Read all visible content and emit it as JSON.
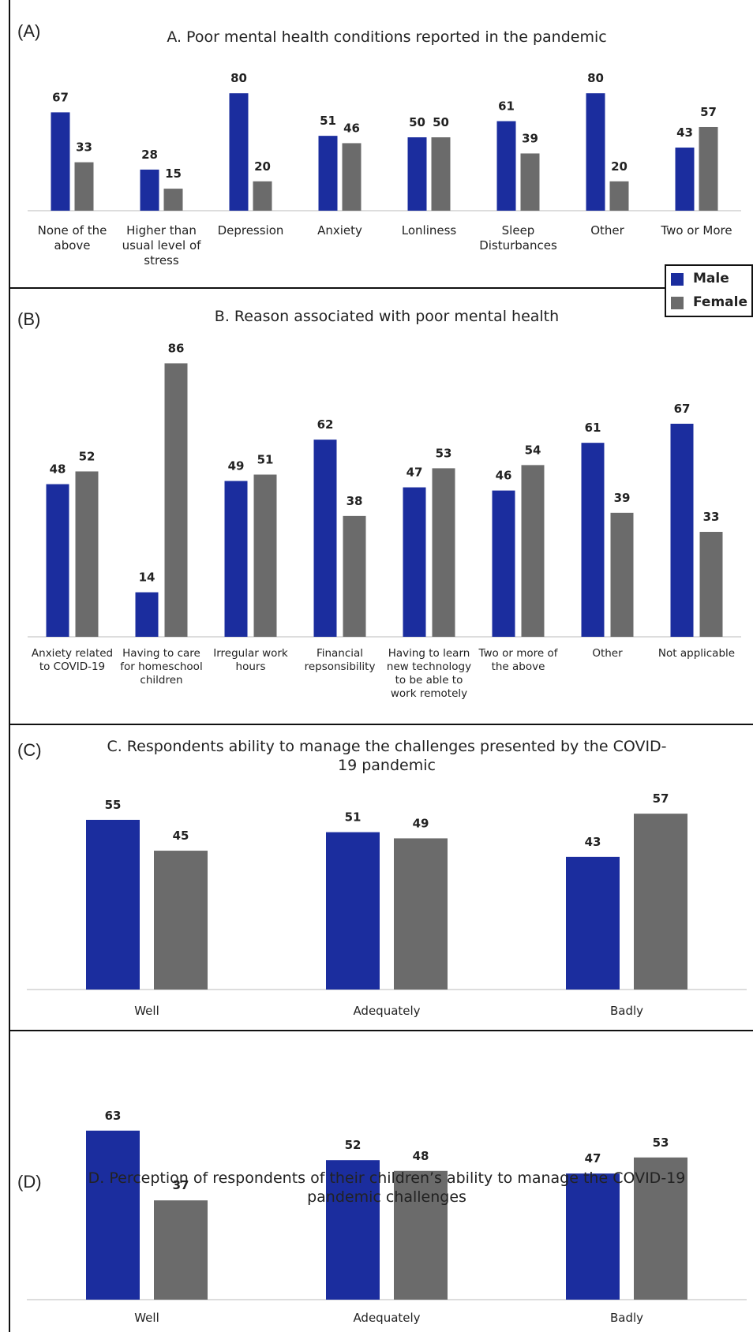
{
  "chart_data": [
    {
      "type": "bar",
      "panel": "(A)",
      "title": "A. Poor mental health conditions reported in the pandemic",
      "categories": [
        "None of the above",
        "Higher than usual level of stress",
        "Depression",
        "Anxiety",
        "Lonliness",
        "Sleep Disturbances",
        "Other",
        "Two or More"
      ],
      "series": [
        {
          "name": "Male",
          "color": "#1b2d9e",
          "values": [
            67,
            28,
            80,
            51,
            50,
            61,
            80,
            43
          ]
        },
        {
          "name": "Female",
          "color": "#6b6b6b",
          "values": [
            33,
            15,
            20,
            46,
            50,
            39,
            20,
            57
          ]
        }
      ],
      "legend": "top-right"
    },
    {
      "type": "bar",
      "panel": "(B)",
      "title": "B. Reason associated with poor mental health",
      "categories": [
        "Anxiety related to COVID-19",
        "Having to care for homeschool children",
        "Irregular work hours",
        "Financial repsonsibility",
        "Having to learn new technology to be able to work remotely",
        "Two or more of the above",
        "Other",
        "Not applicable"
      ],
      "series": [
        {
          "name": "Male",
          "color": "#1b2d9e",
          "values": [
            48,
            14,
            49,
            62,
            47,
            46,
            61,
            67
          ]
        },
        {
          "name": "Female",
          "color": "#6b6b6b",
          "values": [
            52,
            86,
            51,
            38,
            53,
            54,
            39,
            33
          ]
        }
      ]
    },
    {
      "type": "bar",
      "panel": "(C)",
      "title": "C. Respondents ability to manage the challenges presented by the COVID-19 pandemic",
      "categories": [
        "Well",
        "Adequately",
        "Badly"
      ],
      "series": [
        {
          "name": "Male",
          "color": "#1b2d9e",
          "values": [
            55,
            51,
            43
          ]
        },
        {
          "name": "Female",
          "color": "#6b6b6b",
          "values": [
            45,
            49,
            57
          ]
        }
      ]
    },
    {
      "type": "bar",
      "panel": "(D)",
      "title": "D. Perception of respondents of their children’s ability to manage the COVID-19 pandemic challenges",
      "categories": [
        "Well",
        "Adequately",
        "Badly"
      ],
      "series": [
        {
          "name": "Male",
          "color": "#1b2d9e",
          "values": [
            63,
            52,
            47
          ]
        },
        {
          "name": "Female",
          "color": "#6b6b6b",
          "values": [
            37,
            48,
            53
          ]
        }
      ]
    }
  ]
}
